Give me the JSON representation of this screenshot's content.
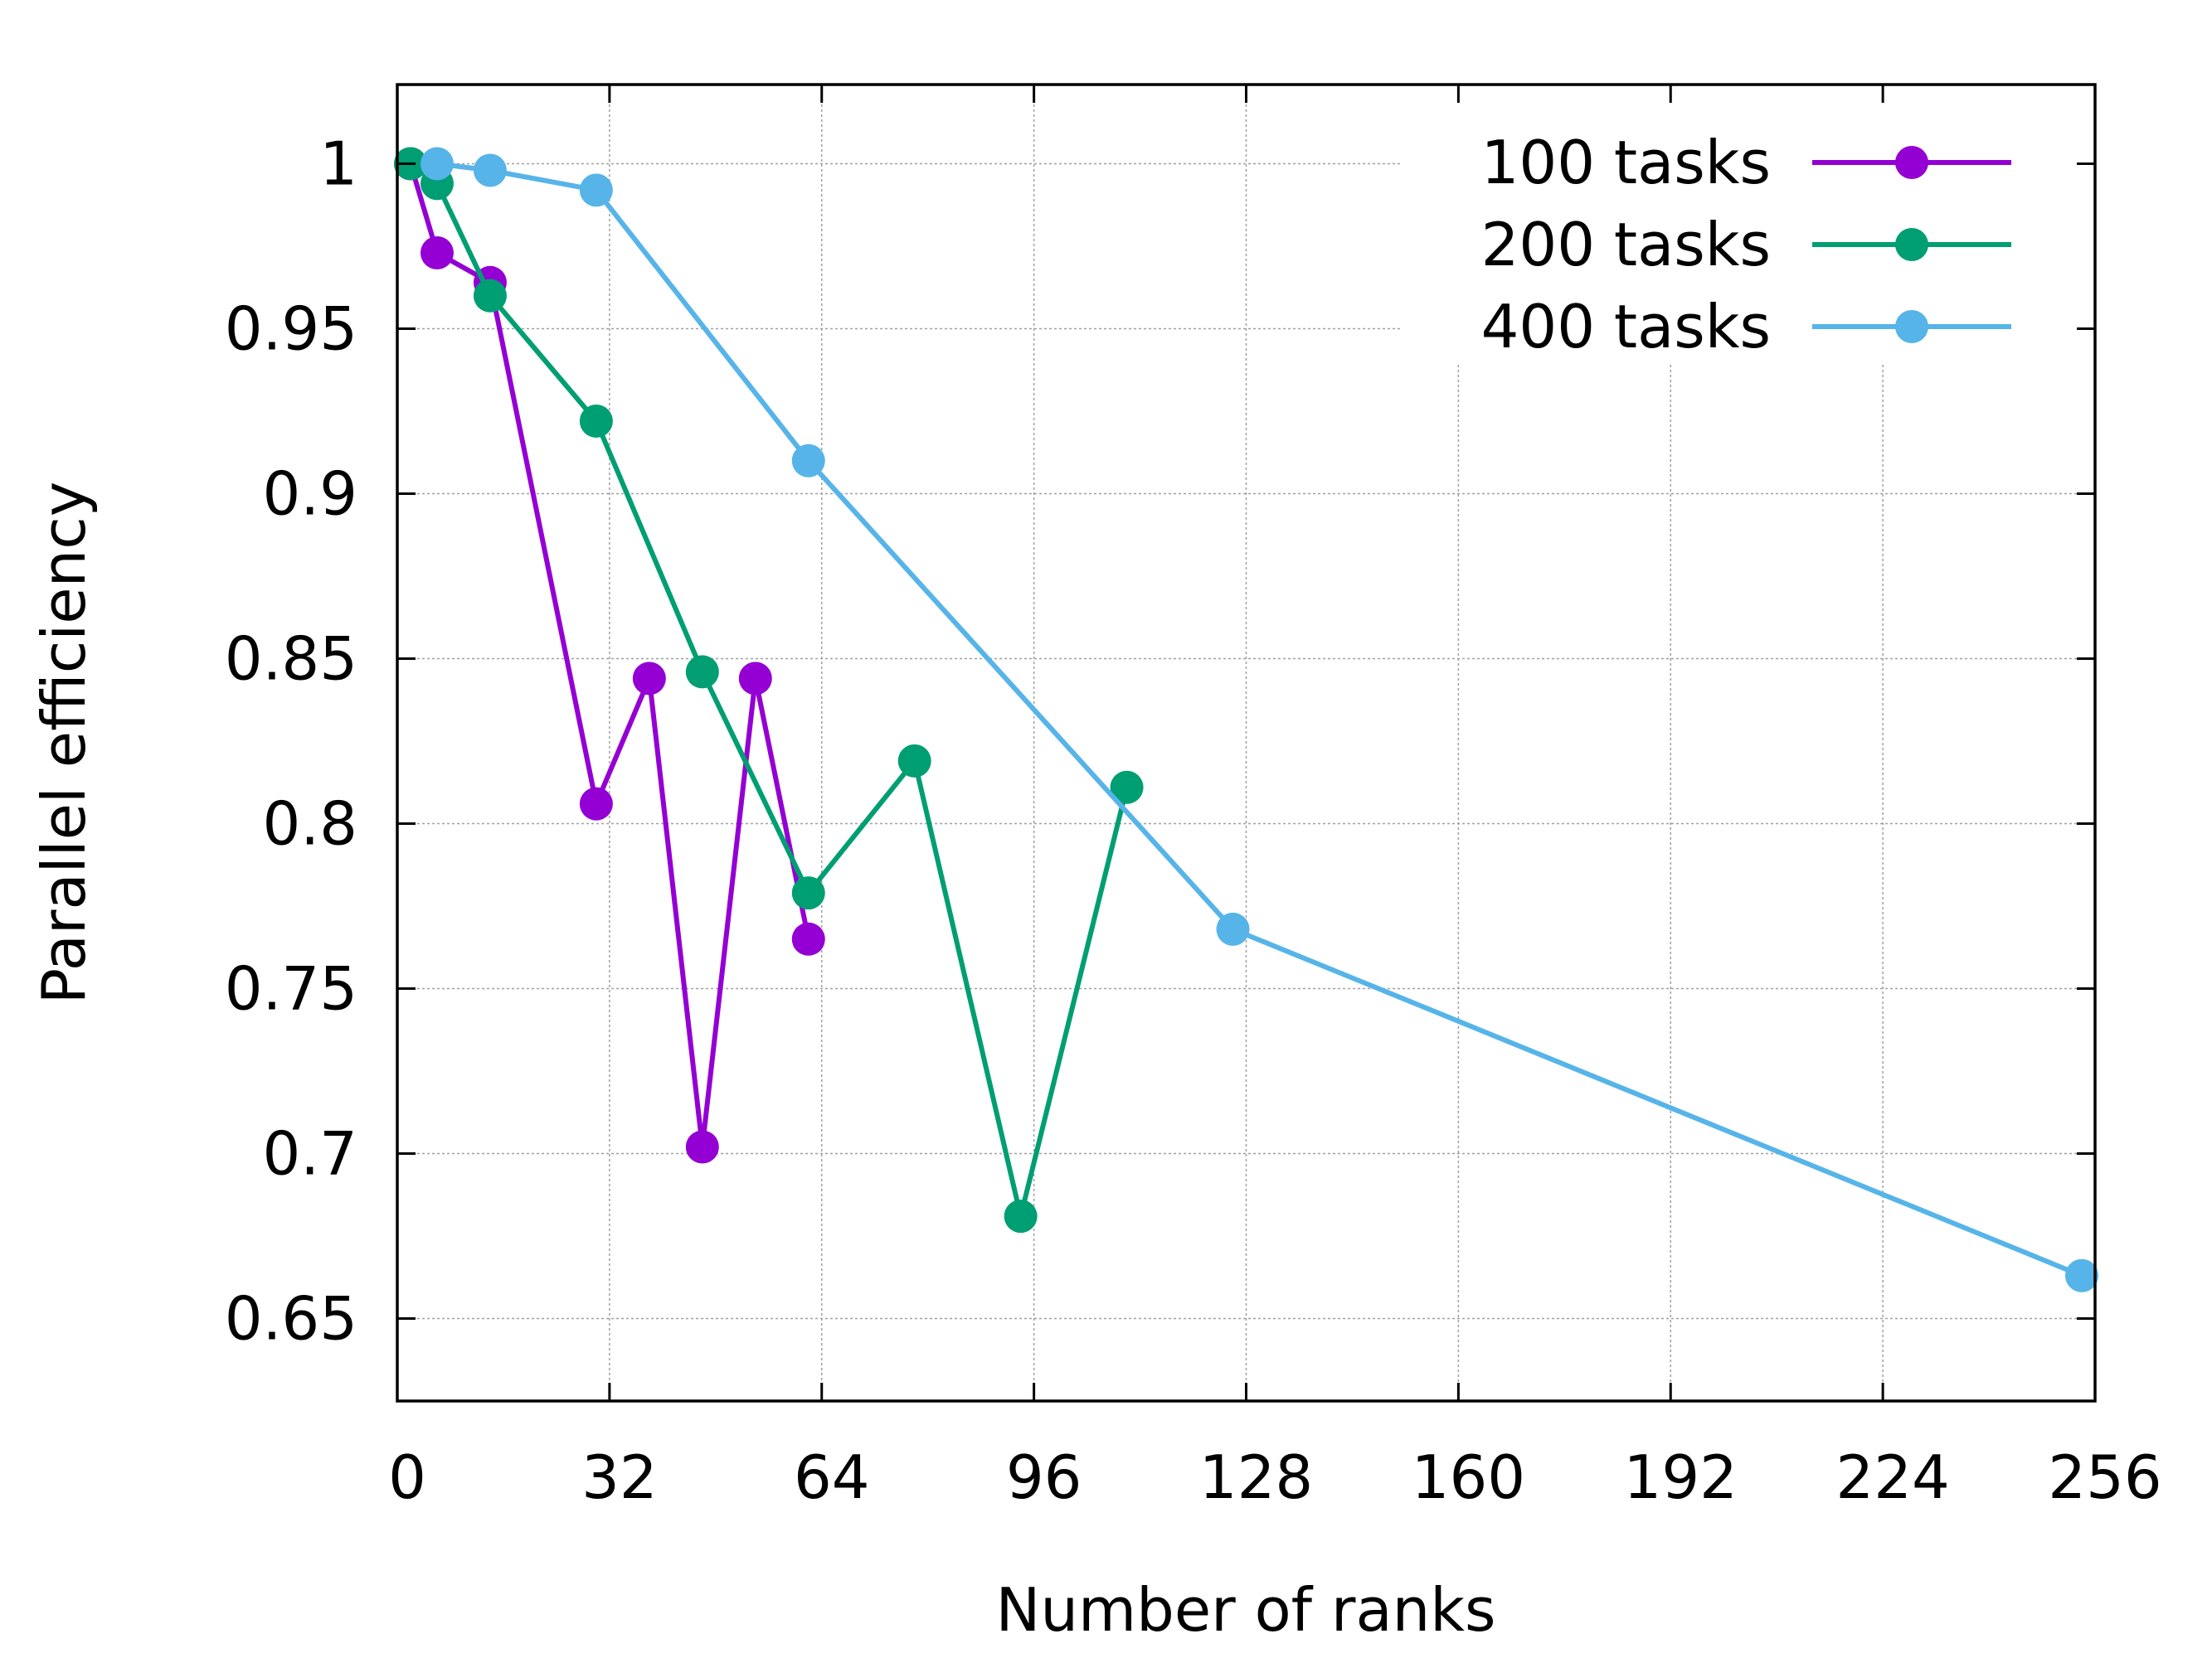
{
  "chart_data": {
    "type": "line",
    "title": "",
    "xlabel": "Number of ranks",
    "ylabel": "Parallel efficiency",
    "xlim": [
      0,
      256
    ],
    "ylim": [
      0.625,
      1.024
    ],
    "xticks": [
      0,
      32,
      64,
      96,
      128,
      160,
      192,
      224,
      256
    ],
    "xtick_labels": [
      "0",
      "32",
      "64",
      "96",
      "128",
      "160",
      "192",
      "224",
      "256"
    ],
    "yticks": [
      0.65,
      0.7,
      0.75,
      0.8,
      0.85,
      0.9,
      0.95,
      1
    ],
    "ytick_labels": [
      "0.65",
      "0.7",
      "0.75",
      "0.8",
      "0.85",
      "0.9",
      "0.95",
      "1"
    ],
    "grid": true,
    "legend_position": "top-right",
    "series": [
      {
        "name": "100 tasks",
        "color": "#9400d3",
        "x": [
          2,
          6,
          14,
          30,
          38,
          46,
          54,
          62
        ],
        "y": [
          1.0,
          0.973,
          0.964,
          0.806,
          0.844,
          0.702,
          0.844,
          0.765
        ]
      },
      {
        "name": "200 tasks",
        "color": "#009e73",
        "x": [
          2,
          6,
          14,
          30,
          46,
          62,
          78,
          94,
          110
        ],
        "y": [
          1.0,
          0.994,
          0.96,
          0.922,
          0.846,
          0.779,
          0.819,
          0.681,
          0.811
        ]
      },
      {
        "name": "400 tasks",
        "color": "#56b4e9",
        "x": [
          6,
          14,
          30,
          62,
          126,
          254
        ],
        "y": [
          1.0,
          0.998,
          0.992,
          0.91,
          0.768,
          0.663
        ]
      }
    ]
  }
}
